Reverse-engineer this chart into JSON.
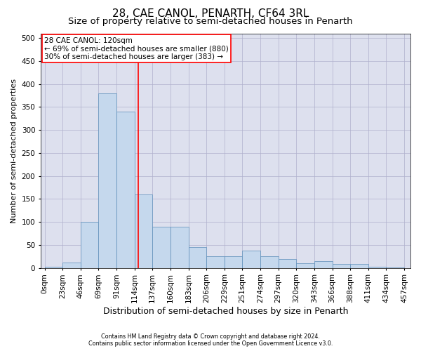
{
  "title": "28, CAE CANOL, PENARTH, CF64 3RL",
  "subtitle": "Size of property relative to semi-detached houses in Penarth",
  "xlabel": "Distribution of semi-detached houses by size in Penarth",
  "ylabel": "Number of semi-detached properties",
  "footer1": "Contains HM Land Registry data © Crown copyright and database right 2024.",
  "footer2": "Contains public sector information licensed under the Open Government Licence v3.0.",
  "annotation_line1": "28 CAE CANOL: 120sqm",
  "annotation_line2": "← 69% of semi-detached houses are smaller (880)",
  "annotation_line3": "30% of semi-detached houses are larger (383) →",
  "bin_starts": [
    0,
    23,
    46,
    69,
    92,
    115,
    138,
    161,
    184,
    207,
    230,
    253,
    276,
    299,
    322,
    345,
    368,
    391,
    414,
    437
  ],
  "bin_width": 23,
  "bar_heights": [
    2,
    12,
    100,
    380,
    340,
    160,
    90,
    90,
    45,
    25,
    25,
    38,
    25,
    20,
    10,
    15,
    8,
    8,
    2,
    1
  ],
  "xtick_labels": [
    "0sqm",
    "23sqm",
    "46sqm",
    "69sqm",
    "91sqm",
    "114sqm",
    "137sqm",
    "160sqm",
    "183sqm",
    "206sqm",
    "229sqm",
    "251sqm",
    "274sqm",
    "297sqm",
    "320sqm",
    "343sqm",
    "366sqm",
    "388sqm",
    "411sqm",
    "434sqm",
    "457sqm"
  ],
  "bar_color": "#c5d8ed",
  "bar_edge_color": "#5b8db8",
  "grid_color": "#b0b0cc",
  "vline_color": "red",
  "vline_x": 120,
  "ylim": [
    0,
    510
  ],
  "xlim_left": -5,
  "xlim_right": 468,
  "yticks": [
    0,
    50,
    100,
    150,
    200,
    250,
    300,
    350,
    400,
    450,
    500
  ],
  "background_color": "#dde0ee",
  "title_fontsize": 11,
  "subtitle_fontsize": 9.5,
  "xlabel_fontsize": 9,
  "ylabel_fontsize": 8,
  "tick_labelsize": 7.5,
  "annotation_fontsize": 7.5
}
